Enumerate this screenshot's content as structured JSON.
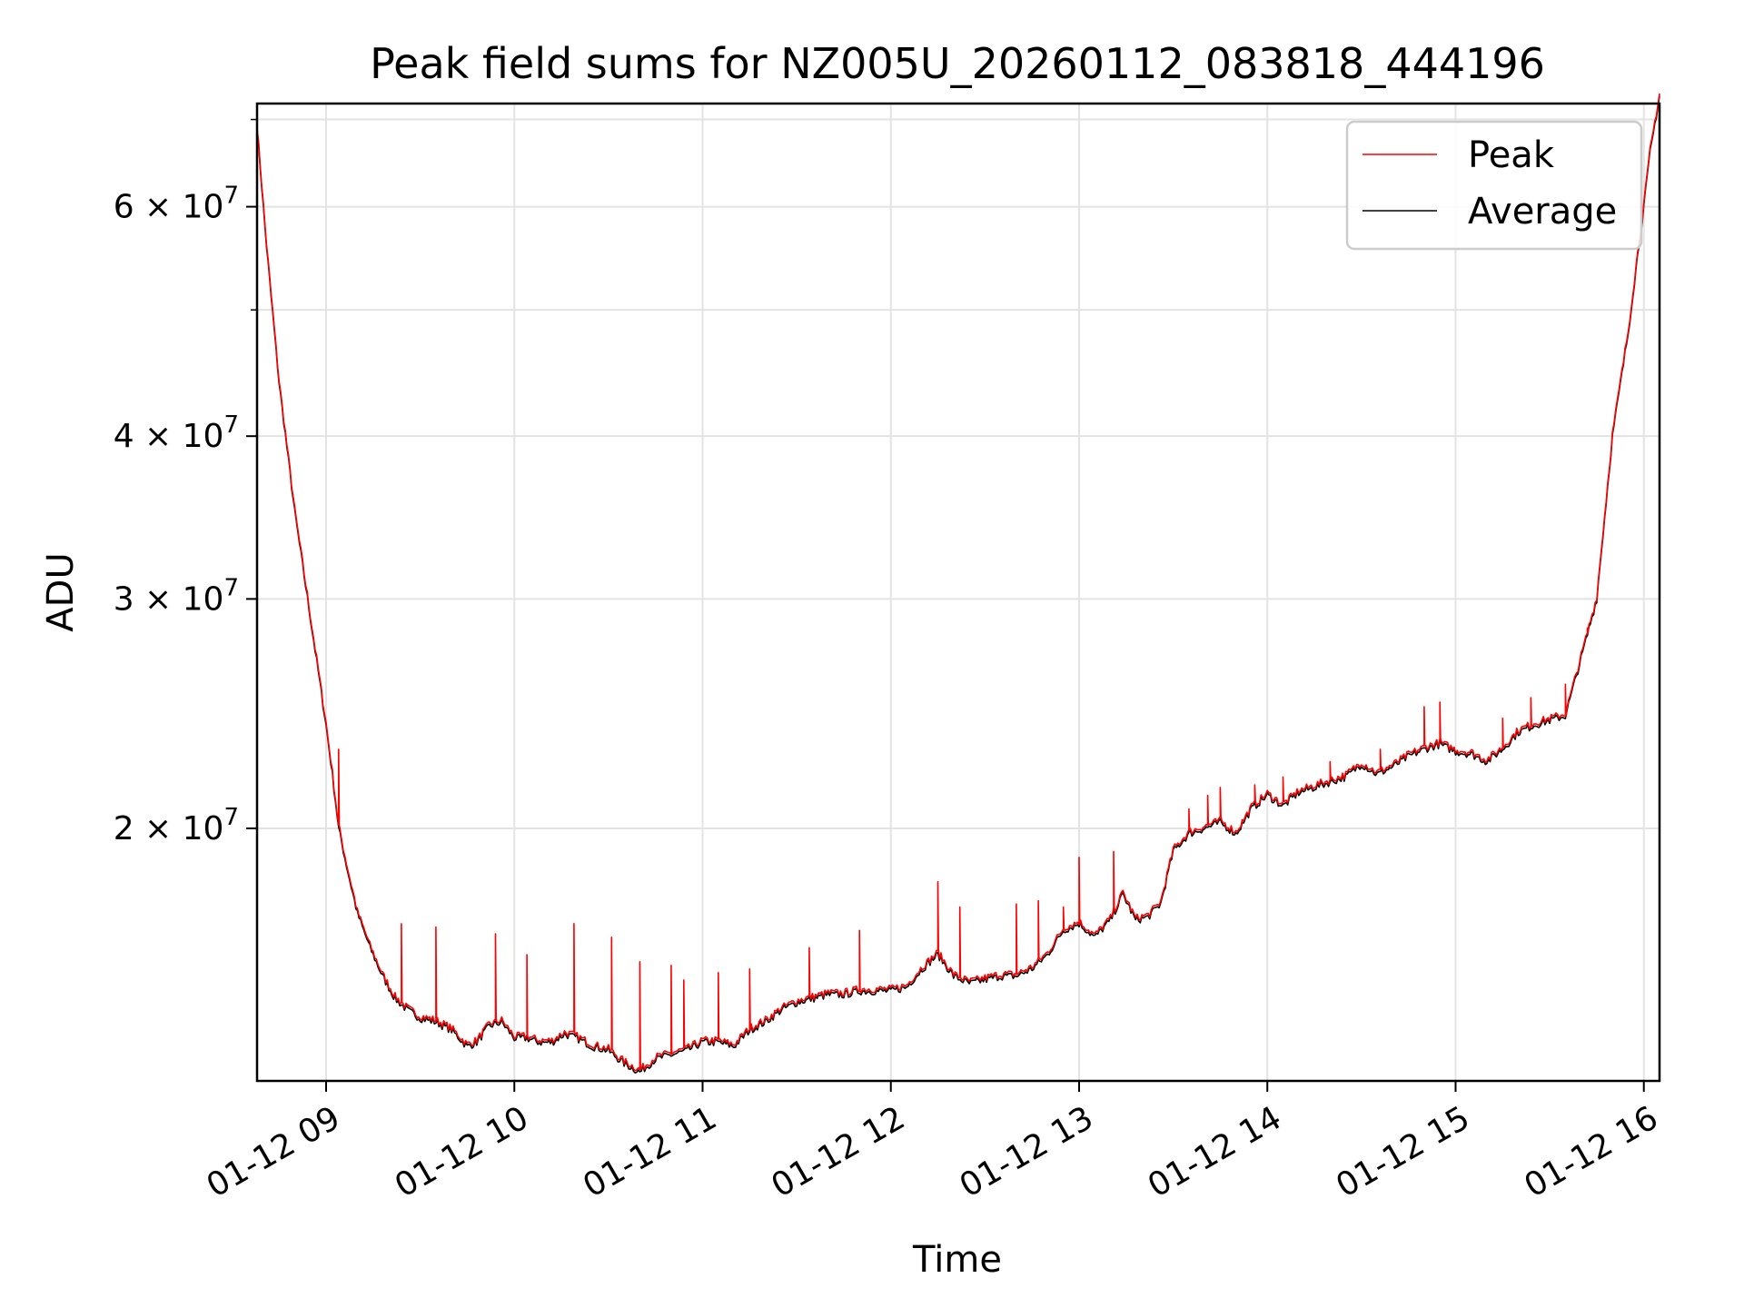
{
  "chart_data": {
    "type": "line",
    "title": "Peak field sums for NZ005U_20260112_083818_444196",
    "xlabel": "Time",
    "ylabel": "ADU",
    "yscale": "log",
    "xlim": [
      "01-12 08:38",
      "01-12 16:05"
    ],
    "ylim": [
      12800000,
      72000000
    ],
    "grid": true,
    "legend_position": "top-right",
    "x_ticks": [
      "01-12 09",
      "01-12 10",
      "01-12 11",
      "01-12 12",
      "01-12 13",
      "01-12 14",
      "01-12 15",
      "01-12 16"
    ],
    "y_ticks": [
      {
        "value": 20000000,
        "base": "2",
        "exp": "7"
      },
      {
        "value": 30000000,
        "base": "3",
        "exp": "7"
      },
      {
        "value": 40000000,
        "base": "4",
        "exp": "7"
      },
      {
        "value": 60000000,
        "base": "6",
        "exp": "7"
      }
    ],
    "y_minor_ticks": [
      50000000,
      70000000
    ],
    "series": [
      {
        "name": "Peak",
        "color": "#ff0000",
        "spikes": [
          [
            "09:04",
            23000000
          ],
          [
            "09:24",
            16900000
          ],
          [
            "09:35",
            16800000
          ],
          [
            "09:54",
            16600000
          ],
          [
            "10:04",
            16000000
          ],
          [
            "10:19",
            16900000
          ],
          [
            "10:31",
            16500000
          ],
          [
            "10:40",
            15800000
          ],
          [
            "10:50",
            15700000
          ],
          [
            "10:54",
            15300000
          ],
          [
            "11:05",
            15500000
          ],
          [
            "11:15",
            15600000
          ],
          [
            "11:34",
            16200000
          ],
          [
            "11:50",
            16700000
          ],
          [
            "12:15",
            18200000
          ],
          [
            "12:22",
            17400000
          ],
          [
            "12:40",
            17500000
          ],
          [
            "12:47",
            17600000
          ],
          [
            "12:55",
            17400000
          ],
          [
            "13:00",
            19000000
          ],
          [
            "13:11",
            19200000
          ],
          [
            "13:35",
            20700000
          ],
          [
            "13:41",
            21200000
          ],
          [
            "13:45",
            21500000
          ],
          [
            "13:56",
            21600000
          ],
          [
            "14:05",
            21900000
          ],
          [
            "14:20",
            22500000
          ],
          [
            "14:36",
            23000000
          ],
          [
            "14:50",
            24800000
          ],
          [
            "14:55",
            25000000
          ],
          [
            "15:15",
            24300000
          ],
          [
            "15:24",
            25200000
          ],
          [
            "15:35",
            25800000
          ],
          [
            "15:42",
            28500000
          ]
        ]
      },
      {
        "name": "Average",
        "color": "#000000",
        "x": [
          "08:38",
          "08:41",
          "08:45",
          "08:50",
          "08:55",
          "09:00",
          "09:02",
          "09:04",
          "09:07",
          "09:10",
          "09:14",
          "09:18",
          "09:22",
          "09:26",
          "09:30",
          "09:35",
          "09:40",
          "09:45",
          "09:48",
          "09:52",
          "09:56",
          "10:00",
          "10:04",
          "10:08",
          "10:12",
          "10:16",
          "10:20",
          "10:25",
          "10:30",
          "10:35",
          "10:40",
          "10:45",
          "10:50",
          "10:55",
          "11:00",
          "11:05",
          "11:10",
          "11:15",
          "11:20",
          "11:25",
          "11:30",
          "11:35",
          "11:40",
          "11:45",
          "11:50",
          "11:55",
          "12:00",
          "12:05",
          "12:10",
          "12:15",
          "12:20",
          "12:25",
          "12:30",
          "12:35",
          "12:40",
          "12:45",
          "12:50",
          "12:55",
          "13:00",
          "13:05",
          "13:10",
          "13:14",
          "13:18",
          "13:22",
          "13:26",
          "13:30",
          "13:35",
          "13:40",
          "13:45",
          "13:50",
          "13:55",
          "14:00",
          "14:05",
          "14:10",
          "14:15",
          "14:20",
          "14:25",
          "14:30",
          "14:35",
          "14:40",
          "14:45",
          "14:50",
          "14:55",
          "15:00",
          "15:05",
          "15:10",
          "15:15",
          "15:20",
          "15:25",
          "15:30",
          "15:35",
          "15:40",
          "15:45",
          "15:50",
          "15:55",
          "15:58",
          "16:00",
          "16:02",
          "16:05"
        ],
        "values": [
          69000000,
          56000000,
          44000000,
          35000000,
          29000000,
          24000000,
          22000000,
          20000000,
          18500000,
          17200000,
          16200000,
          15400000,
          14800000,
          14500000,
          14300000,
          14200000,
          14000000,
          13600000,
          13700000,
          14100000,
          14200000,
          13800000,
          13800000,
          13700000,
          13700000,
          13900000,
          13800000,
          13600000,
          13500000,
          13200000,
          13000000,
          13300000,
          13400000,
          13500000,
          13700000,
          13700000,
          13600000,
          14000000,
          14200000,
          14500000,
          14700000,
          14800000,
          14900000,
          14900000,
          15000000,
          15000000,
          15000000,
          15100000,
          15600000,
          16000000,
          15400000,
          15200000,
          15300000,
          15400000,
          15400000,
          15600000,
          16000000,
          16700000,
          16900000,
          16500000,
          17000000,
          17800000,
          17000000,
          17100000,
          17500000,
          19200000,
          19800000,
          20000000,
          20200000,
          19800000,
          20700000,
          21200000,
          20800000,
          21300000,
          21500000,
          21700000,
          21900000,
          22400000,
          22000000,
          22300000,
          22700000,
          23000000,
          23200000,
          22900000,
          22800000,
          22500000,
          23000000,
          23700000,
          24000000,
          24200000,
          24400000,
          27000000,
          30000000,
          40000000,
          48000000,
          55000000,
          60000000,
          66000000,
          73000000
        ]
      }
    ]
  }
}
